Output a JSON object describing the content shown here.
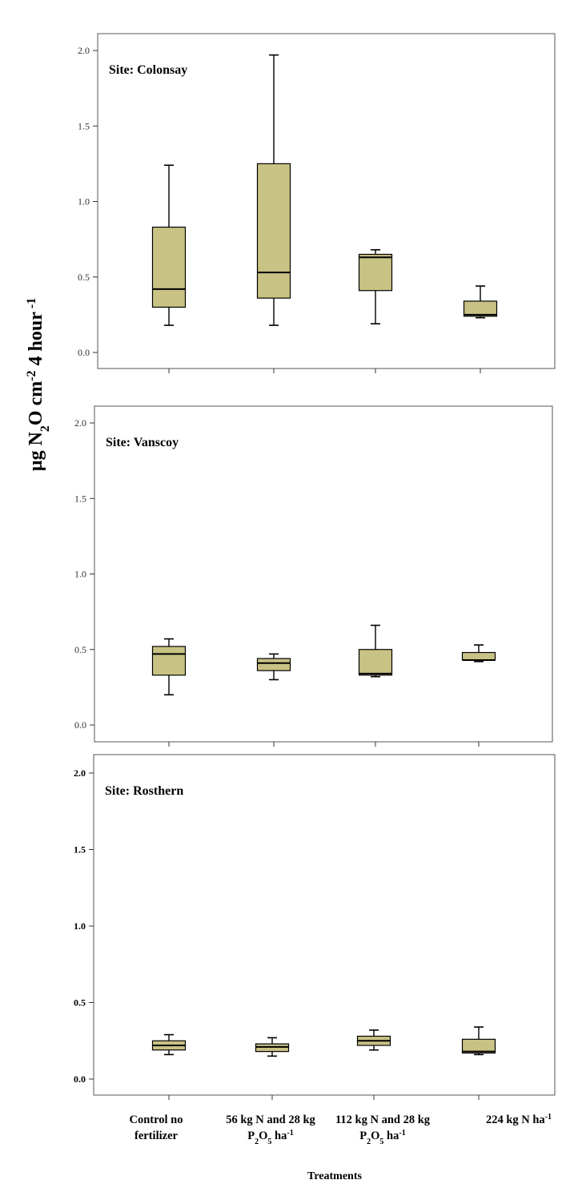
{
  "chart_data": {
    "type": "boxplot",
    "ylabel": {
      "parts": [
        {
          "text": "µg N",
          "kind": "normal"
        },
        {
          "text": "2",
          "kind": "sub"
        },
        {
          "text": "O cm",
          "kind": "normal"
        },
        {
          "text": "-2",
          "kind": "sup"
        },
        {
          "text": " 4 hour",
          "kind": "normal"
        },
        {
          "text": " -1",
          "kind": "sup"
        }
      ]
    },
    "xlabel": "Treatments",
    "ylim": [
      0.0,
      2.0
    ],
    "yticks": [
      "0.0",
      "0.5",
      "1.0",
      "1.5",
      "2.0"
    ],
    "categories": [
      {
        "lines": [
          [
            {
              "text": "Control no",
              "kind": "normal"
            }
          ],
          [
            {
              "text": "fertilizer",
              "kind": "normal"
            }
          ]
        ]
      },
      {
        "lines": [
          [
            {
              "text": "56 kg N and 28 kg",
              "kind": "normal"
            }
          ],
          [
            {
              "text": "P",
              "kind": "normal"
            },
            {
              "text": "2",
              "kind": "sub"
            },
            {
              "text": "O",
              "kind": "normal"
            },
            {
              "text": "5",
              "kind": "sub"
            },
            {
              "text": " ha",
              "kind": "normal"
            },
            {
              "text": "-1",
              "kind": "sup"
            }
          ]
        ]
      },
      {
        "lines": [
          [
            {
              "text": "112 kg N and 28 kg",
              "kind": "normal"
            }
          ],
          [
            {
              "text": "P",
              "kind": "normal"
            },
            {
              "text": "2",
              "kind": "sub"
            },
            {
              "text": "O",
              "kind": "normal"
            },
            {
              "text": "5",
              "kind": "sub"
            },
            {
              "text": " ha",
              "kind": "normal"
            },
            {
              "text": "-1",
              "kind": "sup"
            }
          ]
        ]
      },
      {
        "lines": [
          [
            {
              "text": "224 kg N ha",
              "kind": "normal"
            },
            {
              "text": "-1",
              "kind": "sup"
            }
          ]
        ]
      }
    ],
    "box_color": "#c8c284",
    "panels": [
      {
        "site": "Site: Colonsay",
        "boxes": [
          {
            "min": 0.18,
            "q1": 0.3,
            "median": 0.42,
            "q3": 0.83,
            "max": 1.24
          },
          {
            "min": 0.18,
            "q1": 0.36,
            "median": 0.53,
            "q3": 1.25,
            "max": 1.97
          },
          {
            "min": 0.19,
            "q1": 0.41,
            "median": 0.63,
            "q3": 0.65,
            "max": 0.68
          },
          {
            "min": 0.23,
            "q1": 0.24,
            "median": 0.25,
            "q3": 0.34,
            "max": 0.44
          }
        ]
      },
      {
        "site": "Site: Vanscoy",
        "boxes": [
          {
            "min": 0.2,
            "q1": 0.33,
            "median": 0.47,
            "q3": 0.52,
            "max": 0.57
          },
          {
            "min": 0.3,
            "q1": 0.36,
            "median": 0.41,
            "q3": 0.44,
            "max": 0.47
          },
          {
            "min": 0.32,
            "q1": 0.33,
            "median": 0.34,
            "q3": 0.5,
            "max": 0.66
          },
          {
            "min": 0.42,
            "q1": 0.43,
            "median": 0.43,
            "q3": 0.48,
            "max": 0.53
          }
        ]
      },
      {
        "site": "Site: Rosthern",
        "boxes": [
          {
            "min": 0.16,
            "q1": 0.19,
            "median": 0.22,
            "q3": 0.25,
            "max": 0.29
          },
          {
            "min": 0.15,
            "q1": 0.18,
            "median": 0.21,
            "q3": 0.23,
            "max": 0.27
          },
          {
            "min": 0.19,
            "q1": 0.22,
            "median": 0.25,
            "q3": 0.28,
            "max": 0.32
          },
          {
            "min": 0.16,
            "q1": 0.17,
            "median": 0.18,
            "q3": 0.26,
            "max": 0.34
          }
        ]
      }
    ]
  }
}
